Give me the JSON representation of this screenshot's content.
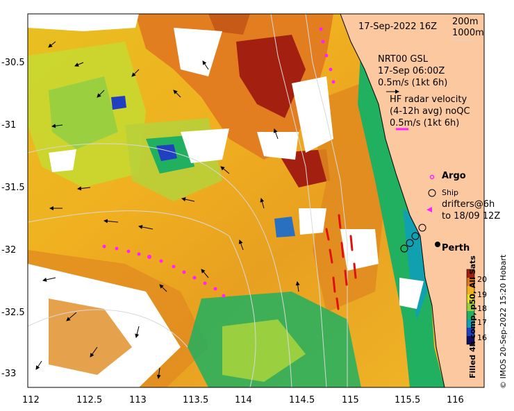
{
  "header": {
    "date_time": "17-Sep-2022 16Z",
    "isobath_deep": "200m",
    "isobath_shallow": "1000m"
  },
  "legend": {
    "gsl_line1": "NRT00 GSL",
    "gsl_line2": "17-Sep 06:00Z",
    "gsl_line3": "0.5m/s (1kt 6h)",
    "hf_line1": "HF radar velocity",
    "hf_line2": "(4-12h avg) noQC",
    "hf_line3": "0.5m/s (1kt 6h)",
    "argo": "Argo",
    "ship": "Ship",
    "drifters_line1": "drifters@6h",
    "drifters_line2": "to 18/09 12Z",
    "city": "Perth"
  },
  "axes": {
    "y_ticks": [
      "-30.5",
      "-31",
      "-31.5",
      "-32",
      "-32.5",
      "-33"
    ],
    "x_ticks": [
      "112",
      "112.5",
      "113",
      "113.5",
      "114",
      "114.5",
      "115",
      "115.5",
      "116"
    ]
  },
  "colorbar": {
    "ticks": [
      "20",
      "19",
      "18",
      "17",
      "16"
    ],
    "colors": [
      "#a32010",
      "#e07820",
      "#f0b020",
      "#e8e020",
      "#9ad040",
      "#20b060",
      "#10a0b0",
      "#2040c0",
      "#101060"
    ],
    "title": "Filled 4h comp, p50, All Sats"
  },
  "credit": "© IMOS 20-Sep-2022 15:20 Hobart"
}
